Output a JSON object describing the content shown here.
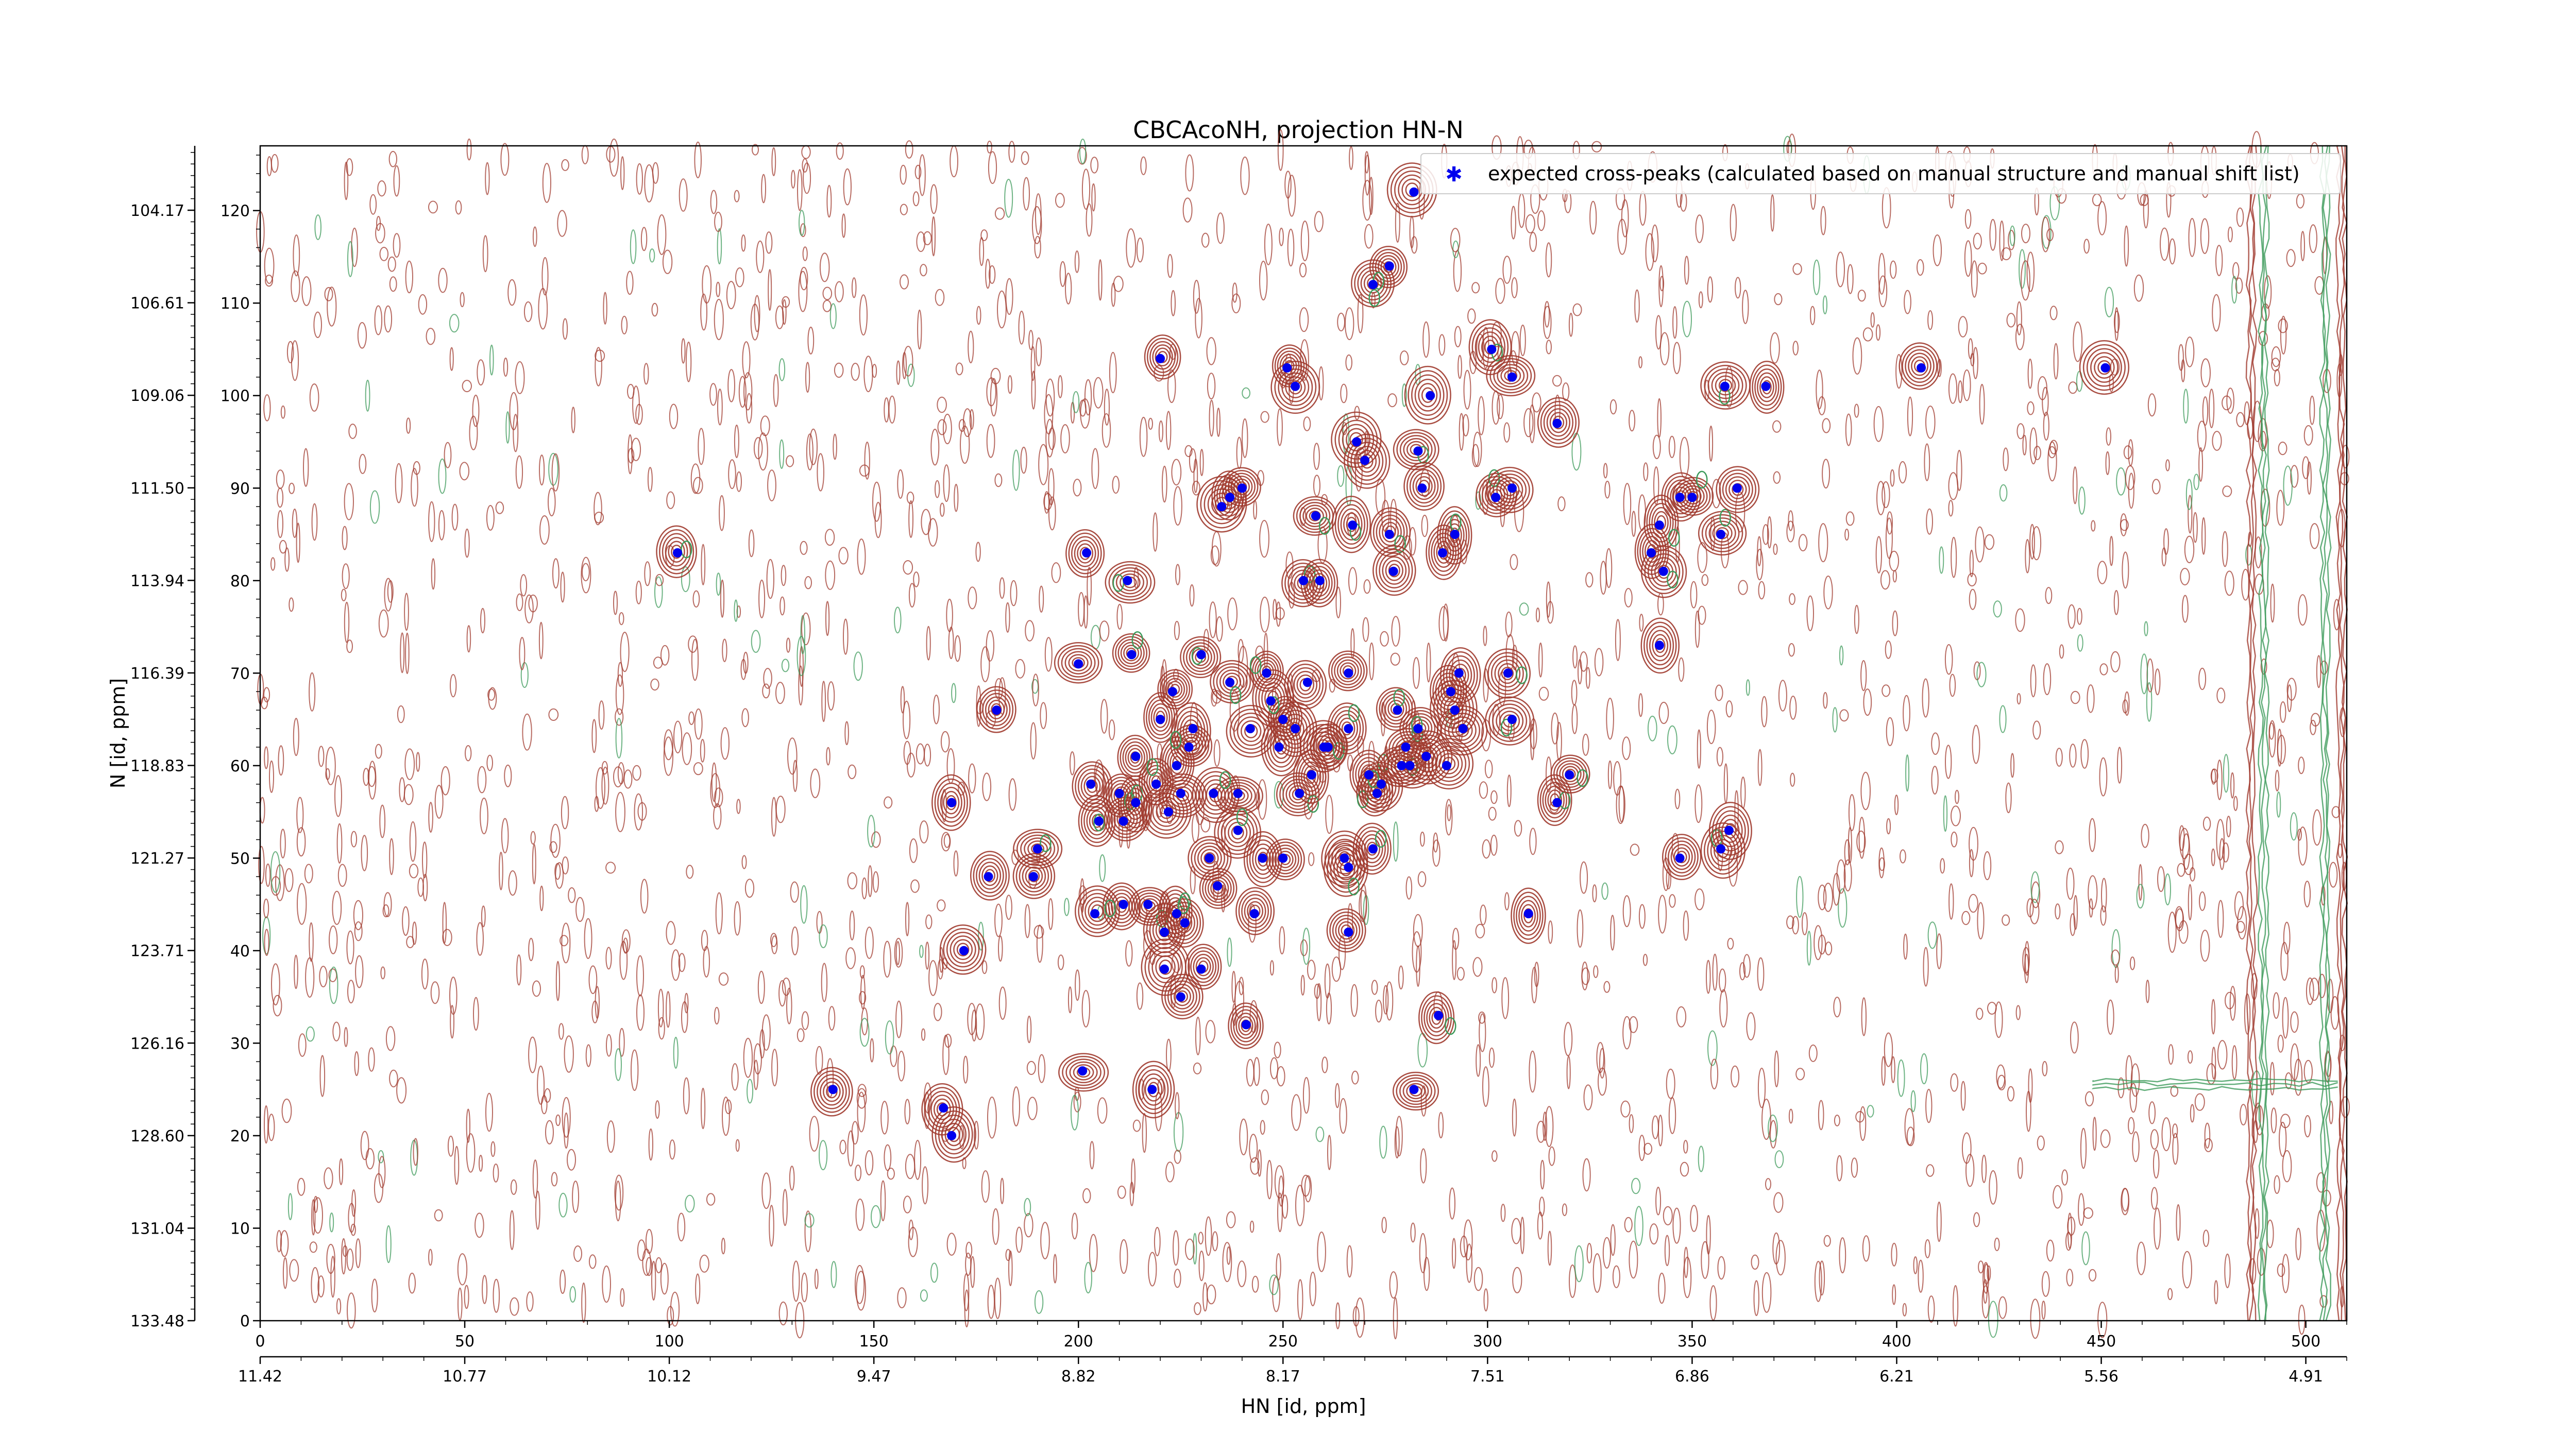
{
  "chart_data": {
    "type": "scatter",
    "title": "CBCAcoNH, projection HN-N",
    "xlabel": "HN [id, ppm]",
    "ylabel": "N [id, ppm]",
    "xlim": [
      0,
      510
    ],
    "ylim": [
      0,
      127
    ],
    "x_ticks": [
      0,
      50,
      100,
      150,
      200,
      250,
      300,
      350,
      400,
      450,
      500
    ],
    "y_ticks": [
      0,
      10,
      20,
      30,
      40,
      50,
      60,
      70,
      80,
      90,
      100,
      110,
      120
    ],
    "x_ppm_ticks": [
      "11.42",
      "10.77",
      "10.12",
      "9.47",
      "8.82",
      "8.17",
      "7.51",
      "6.86",
      "6.21",
      "5.56",
      "4.91"
    ],
    "y_ppm_ticks": [
      "133.48",
      "131.04",
      "128.60",
      "126.16",
      "123.71",
      "121.27",
      "118.83",
      "116.39",
      "113.94",
      "111.50",
      "109.06",
      "106.61",
      "104.17"
    ],
    "legend": {
      "position": "top-right",
      "label": "expected cross-peaks (calculated based on manual structure and manual shift list)"
    },
    "colors": {
      "marker": "#0000ee",
      "positive_contour": "#a03a2e",
      "negative_contour": "#3c9a5a"
    },
    "series": [
      {
        "name": "expected cross-peaks (calculated based on manual structure and manual shift list)",
        "points": [
          [
            102,
            83
          ],
          [
            140,
            25
          ],
          [
            167,
            23
          ],
          [
            169,
            20
          ],
          [
            169,
            56
          ],
          [
            172,
            40
          ],
          [
            178,
            48
          ],
          [
            180,
            66
          ],
          [
            189,
            48
          ],
          [
            190,
            51
          ],
          [
            200,
            71
          ],
          [
            201,
            27
          ],
          [
            202,
            83
          ],
          [
            203,
            58
          ],
          [
            204,
            44
          ],
          [
            205,
            54
          ],
          [
            210,
            57
          ],
          [
            211,
            45
          ],
          [
            211,
            54
          ],
          [
            212,
            80
          ],
          [
            213,
            72
          ],
          [
            214,
            56
          ],
          [
            214,
            61
          ],
          [
            217,
            45
          ],
          [
            218,
            25
          ],
          [
            219,
            58
          ],
          [
            220,
            104
          ],
          [
            220,
            65
          ],
          [
            221,
            42
          ],
          [
            221,
            38
          ],
          [
            222,
            55
          ],
          [
            223,
            68
          ],
          [
            224,
            60
          ],
          [
            224,
            44
          ],
          [
            225,
            57
          ],
          [
            225,
            35
          ],
          [
            226,
            43
          ],
          [
            227,
            62
          ],
          [
            228,
            64
          ],
          [
            230,
            38
          ],
          [
            230,
            72
          ],
          [
            232,
            50
          ],
          [
            233,
            57
          ],
          [
            234,
            47
          ],
          [
            235,
            88
          ],
          [
            237,
            89
          ],
          [
            237,
            69
          ],
          [
            239,
            57
          ],
          [
            239,
            53
          ],
          [
            240,
            90
          ],
          [
            241,
            32
          ],
          [
            242,
            64
          ],
          [
            243,
            44
          ],
          [
            245,
            50
          ],
          [
            246,
            70
          ],
          [
            247,
            67
          ],
          [
            249,
            62
          ],
          [
            250,
            50
          ],
          [
            250,
            65
          ],
          [
            251,
            103
          ],
          [
            253,
            101
          ],
          [
            253,
            64
          ],
          [
            254,
            57
          ],
          [
            255,
            80
          ],
          [
            256,
            69
          ],
          [
            257,
            59
          ],
          [
            258,
            87
          ],
          [
            259,
            80
          ],
          [
            260,
            62
          ],
          [
            261,
            62
          ],
          [
            265,
            50
          ],
          [
            266,
            70
          ],
          [
            266,
            64
          ],
          [
            266,
            49
          ],
          [
            266,
            42
          ],
          [
            267,
            86
          ],
          [
            268,
            95
          ],
          [
            270,
            93
          ],
          [
            271,
            59
          ],
          [
            272,
            112
          ],
          [
            272,
            51
          ],
          [
            273,
            57
          ],
          [
            274,
            58
          ],
          [
            276,
            114
          ],
          [
            276,
            85
          ],
          [
            277,
            81
          ],
          [
            278,
            66
          ],
          [
            279,
            60
          ],
          [
            280,
            62
          ],
          [
            281,
            60
          ],
          [
            282,
            122
          ],
          [
            282,
            25
          ],
          [
            283,
            94
          ],
          [
            283,
            64
          ],
          [
            284,
            90
          ],
          [
            285,
            61
          ],
          [
            286,
            100
          ],
          [
            288,
            33
          ],
          [
            289,
            83
          ],
          [
            290,
            60
          ],
          [
            291,
            68
          ],
          [
            292,
            85
          ],
          [
            292,
            66
          ],
          [
            293,
            70
          ],
          [
            294,
            64
          ],
          [
            301,
            105
          ],
          [
            302,
            89
          ],
          [
            305,
            70
          ],
          [
            306,
            102
          ],
          [
            306,
            65
          ],
          [
            306,
            90
          ],
          [
            310,
            44
          ],
          [
            317,
            97
          ],
          [
            317,
            56
          ],
          [
            320,
            59
          ],
          [
            340,
            83
          ],
          [
            342,
            86
          ],
          [
            342,
            73
          ],
          [
            343,
            81
          ],
          [
            347,
            89
          ],
          [
            347,
            50
          ],
          [
            350,
            89
          ],
          [
            357,
            51
          ],
          [
            357,
            85
          ],
          [
            358,
            101
          ],
          [
            359,
            53
          ],
          [
            361,
            90
          ],
          [
            368,
            101
          ],
          [
            406,
            103
          ],
          [
            451,
            103
          ]
        ]
      }
    ]
  }
}
